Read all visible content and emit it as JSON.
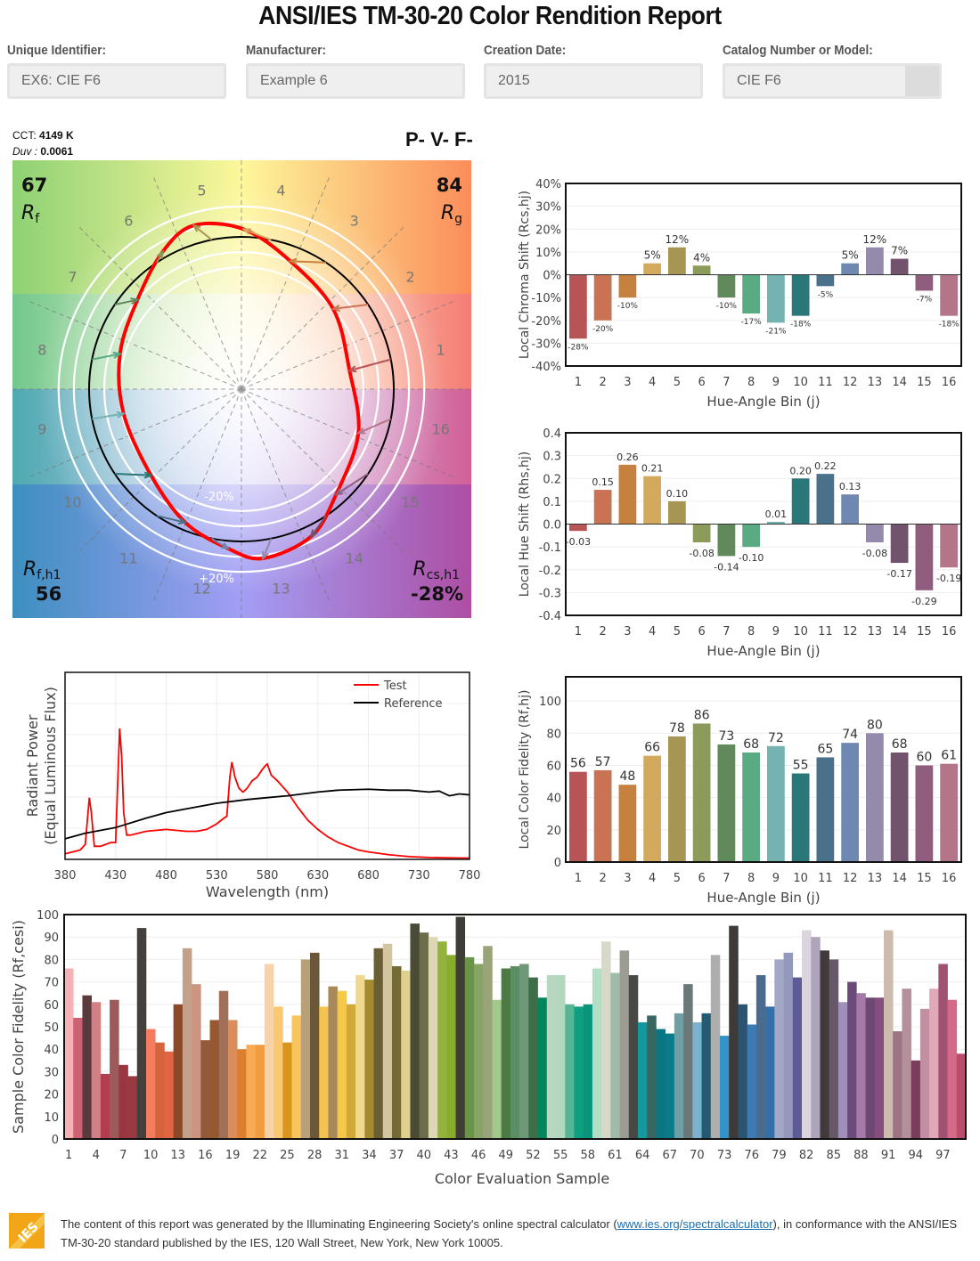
{
  "header": {
    "title": "ANSI/IES TM-30-20 Color Rendition Report"
  },
  "fields": [
    {
      "label": "Unique Identifier:",
      "value": "EX6: CIE F6"
    },
    {
      "label": "Manufacturer:",
      "value": "Example 6"
    },
    {
      "label": "Creation Date:",
      "value": "2015"
    },
    {
      "label": "Catalog Number or Model:",
      "value": "CIE F6"
    }
  ],
  "metrics": {
    "cct_label": "CCT:",
    "cct_value": "4149 K",
    "duv_label": "Duv :",
    "duv_value": "0.0061",
    "classification": "P- V- F-",
    "rf_value": "67",
    "rf_label": "Rf",
    "rg_value": "84",
    "rg_label": "Rg",
    "rfh1_label": "Rf,h1",
    "rfh1_value": "56",
    "rcsh1_label": "Rcs,h1",
    "rcsh1_value": "-28%",
    "ring_minus": "-20%",
    "ring_plus": "+20%"
  },
  "footer": {
    "logo": "IES",
    "text_before": "The content of this report was generated by the Illuminating Engineering Society's online spectral calculator (",
    "link": "www.ies.org/spectralcalculator",
    "text_after": "), in conformance with the ANSI/IES TM-30-20 standard published by the IES, 120 Wall Street, New York, New York 10005."
  },
  "colors": {
    "bins": [
      "#b75456",
      "#c97254",
      "#c7813f",
      "#d3a95e",
      "#a79653",
      "#8c9b5a",
      "#608a5b",
      "#5aab82",
      "#74b3b1",
      "#2a7779",
      "#4a718a",
      "#6e88b2",
      "#948aab",
      "#71536e",
      "#8f5d7d",
      "#b57588"
    ],
    "test": "#ff0000",
    "reference": "#000000"
  },
  "chart_data": [
    {
      "id": "chroma",
      "type": "bar",
      "title": "",
      "xlabel": "Hue-Angle Bin (j)",
      "ylabel": "Local Chroma Shift (Rcs,hj)",
      "categories": [
        "1",
        "2",
        "3",
        "4",
        "5",
        "6",
        "7",
        "8",
        "9",
        "10",
        "11",
        "12",
        "13",
        "14",
        "15",
        "16"
      ],
      "values": [
        -28,
        -20,
        -10,
        5,
        12,
        4,
        -10,
        -17,
        -21,
        -18,
        -5,
        5,
        12,
        7,
        -7,
        -18
      ],
      "labels": [
        "-28%",
        "-20%",
        "-10%",
        "5%",
        "12%",
        "4%",
        "-10%",
        "-17%",
        "-21%",
        "-18%",
        "-5%",
        "5%",
        "12%",
        "7%",
        "-7%",
        "-18%"
      ],
      "yticks": [
        "40%",
        "30%",
        "20%",
        "10%",
        "0%",
        "-10%",
        "-20%",
        "-30%",
        "-40%"
      ],
      "ylim": [
        -40,
        40
      ]
    },
    {
      "id": "hue",
      "type": "bar",
      "xlabel": "Hue-Angle Bin (j)",
      "ylabel": "Local Hue Shift (Rhs,hj)",
      "categories": [
        "1",
        "2",
        "3",
        "4",
        "5",
        "6",
        "7",
        "8",
        "9",
        "10",
        "11",
        "12",
        "13",
        "14",
        "15",
        "16"
      ],
      "values": [
        -0.03,
        0.15,
        0.26,
        0.21,
        0.1,
        -0.08,
        -0.14,
        -0.1,
        0.01,
        0.2,
        0.22,
        0.13,
        -0.08,
        -0.17,
        -0.29,
        -0.19
      ],
      "labels": [
        "-0.03",
        "0.15",
        "0.26",
        "0.21",
        "0.10",
        "-0.08",
        "-0.14",
        "-0.10",
        "0.01",
        "0.20",
        "0.22",
        "0.13",
        "-0.08",
        "-0.17",
        "-0.29",
        "-0.19"
      ],
      "yticks": [
        "0.4",
        "0.3",
        "0.2",
        "0.1",
        "0.0",
        "-0.1",
        "-0.2",
        "-0.3",
        "-0.4"
      ],
      "ylim": [
        -0.4,
        0.4
      ]
    },
    {
      "id": "fidelity",
      "type": "bar",
      "xlabel": "Hue-Angle Bin (j)",
      "ylabel": "Local Color Fidelity (Rf,hj)",
      "categories": [
        "1",
        "2",
        "3",
        "4",
        "5",
        "6",
        "7",
        "8",
        "9",
        "10",
        "11",
        "12",
        "13",
        "14",
        "15",
        "16"
      ],
      "values": [
        56,
        57,
        48,
        66,
        78,
        86,
        73,
        68,
        72,
        55,
        65,
        74,
        80,
        68,
        60,
        61
      ],
      "yticks": [
        "100",
        "80",
        "60",
        "40",
        "20",
        "0"
      ],
      "ylim": [
        0,
        115
      ]
    },
    {
      "id": "spectrum",
      "type": "line",
      "xlabel": "Wavelength (nm)",
      "ylabel": "Radiant Power (Equal Luminous Flux)",
      "xticks": [
        "380",
        "430",
        "480",
        "530",
        "580",
        "630",
        "680",
        "730",
        "780"
      ],
      "xlim": [
        380,
        780
      ],
      "ylim": [
        0,
        1
      ],
      "legend": "top-right",
      "series": [
        {
          "name": "Test",
          "x": [
            380,
            395,
            400,
            404,
            406,
            409,
            415,
            425,
            430,
            434,
            436,
            438,
            441,
            445,
            460,
            480,
            500,
            510,
            520,
            530,
            537,
            540,
            543,
            545,
            548,
            552,
            556,
            560,
            565,
            570,
            575,
            578,
            580,
            584,
            590,
            600,
            610,
            620,
            630,
            640,
            650,
            660,
            670,
            680,
            700,
            720,
            740,
            760,
            780
          ],
          "y": [
            0.03,
            0.05,
            0.08,
            0.33,
            0.25,
            0.07,
            0.07,
            0.09,
            0.09,
            0.7,
            0.55,
            0.25,
            0.13,
            0.13,
            0.15,
            0.16,
            0.15,
            0.15,
            0.16,
            0.19,
            0.22,
            0.23,
            0.44,
            0.52,
            0.44,
            0.38,
            0.36,
            0.38,
            0.42,
            0.44,
            0.48,
            0.5,
            0.51,
            0.45,
            0.42,
            0.36,
            0.28,
            0.21,
            0.16,
            0.12,
            0.09,
            0.07,
            0.05,
            0.04,
            0.025,
            0.015,
            0.01,
            0.008,
            0.007
          ]
        },
        {
          "name": "Reference",
          "x": [
            380,
            400,
            430,
            460,
            480,
            500,
            530,
            560,
            580,
            600,
            630,
            650,
            680,
            700,
            720,
            740,
            750,
            760,
            770,
            780
          ],
          "y": [
            0.11,
            0.14,
            0.17,
            0.22,
            0.25,
            0.27,
            0.3,
            0.32,
            0.33,
            0.34,
            0.36,
            0.37,
            0.375,
            0.37,
            0.37,
            0.36,
            0.365,
            0.34,
            0.35,
            0.345
          ]
        }
      ]
    },
    {
      "id": "samples",
      "type": "bar",
      "xlabel": "Color Evaluation Sample",
      "ylabel": "Sample Color Fidelity (Rf,cesi)",
      "xticks": [
        "1",
        "4",
        "7",
        "10",
        "13",
        "16",
        "19",
        "22",
        "25",
        "28",
        "31",
        "34",
        "37",
        "40",
        "43",
        "46",
        "49",
        "52",
        "55",
        "58",
        "61",
        "64",
        "67",
        "70",
        "73",
        "76",
        "79",
        "82",
        "85",
        "88",
        "91",
        "94",
        "97"
      ],
      "yticks": [
        "100",
        "90",
        "80",
        "70",
        "60",
        "50",
        "40",
        "30",
        "20",
        "10",
        "0"
      ],
      "ylim": [
        0,
        100
      ],
      "values": [
        76,
        54,
        64,
        61,
        29,
        62,
        33,
        28,
        94,
        49,
        43,
        39,
        60,
        85,
        69,
        44,
        53,
        66,
        53,
        40,
        42,
        42,
        78,
        59,
        43,
        55,
        80,
        83,
        59,
        68,
        66,
        60,
        73,
        71,
        85,
        87,
        77,
        75,
        96,
        92,
        90,
        88,
        82,
        99,
        81,
        78,
        86,
        62,
        76,
        77,
        78,
        72,
        63,
        73,
        73,
        60,
        59,
        60,
        76,
        88,
        74,
        84,
        73,
        52,
        55,
        49,
        47,
        56,
        69,
        52,
        56,
        82,
        46,
        95,
        60,
        51,
        73,
        59,
        80,
        83,
        72,
        93,
        90,
        84,
        80,
        61,
        70,
        65,
        63,
        63,
        93,
        48,
        67,
        35,
        58,
        67,
        78,
        62,
        38
      ],
      "colors": [
        "#f6b1b4",
        "#cf6174",
        "#5a3a3c",
        "#d27f85",
        "#b23d4e",
        "#9c5a5a",
        "#9a3640",
        "#9a3a40",
        "#44403c",
        "#f67c5f",
        "#d5633d",
        "#e26542",
        "#8a4a2a",
        "#c4a08b",
        "#ce9482",
        "#925a38",
        "#95582f",
        "#a0705a",
        "#d98d5a",
        "#db7f2e",
        "#f9aa55",
        "#f39b3f",
        "#f8d3a9",
        "#f9c870",
        "#d9961e",
        "#f8c55c",
        "#b8a078",
        "#6b5838",
        "#f5c352",
        "#a8895a",
        "#f5c84a",
        "#d0a938",
        "#f0d88e",
        "#a68a2f",
        "#6a5f34",
        "#d3c5a0",
        "#736a36",
        "#e0d08e",
        "#4b4b38",
        "#6d6d4a",
        "#dcd8b4",
        "#93b33e",
        "#8aac2d",
        "#3e3e36",
        "#6a9447",
        "#88a464",
        "#9aa47b",
        "#a2c98a",
        "#4c7a44",
        "#5b8e64",
        "#6f9878",
        "#3e6e48",
        "#00865a",
        "#b7d7c0",
        "#b2d7bd",
        "#56b693",
        "#0e9e80",
        "#08957c",
        "#b4ddc6",
        "#d8d8c8",
        "#9fbbaa",
        "#9c9c92",
        "#484844",
        "#12989e",
        "#3a6660",
        "#0a7583",
        "#0a7b88",
        "#6f9ea5",
        "#6b7878",
        "#7bb2d0",
        "#245a72",
        "#adafad",
        "#3592c8",
        "#3d3a38",
        "#2c5470",
        "#3b7ab2",
        "#4a6a8e",
        "#3470a8",
        "#a4a8c8",
        "#9498bc",
        "#5c5b96",
        "#dcd4dc",
        "#b0a4bc",
        "#403a3a",
        "#665868",
        "#a08ebc",
        "#6a4a7a",
        "#a57aa8",
        "#6e4872",
        "#844f80",
        "#cdbcae",
        "#9c7484",
        "#b4909c",
        "#7c3c5c",
        "#c48ea2",
        "#e1a8b6",
        "#a05270",
        "#d46a88",
        "#b84e6c"
      ]
    }
  ]
}
